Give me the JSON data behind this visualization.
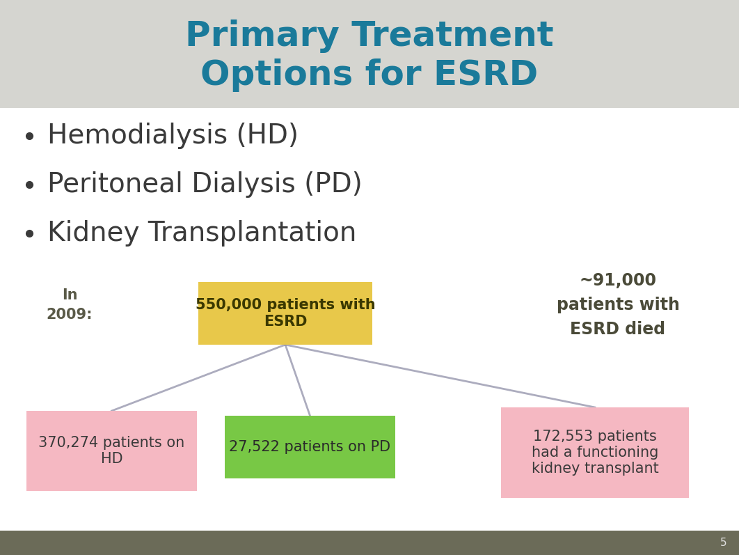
{
  "title_line1": "Primary Treatment",
  "title_line2": "Options for ESRD",
  "title_color": "#1a7a9a",
  "header_bg": "#d5d5d0",
  "slide_bg": "#f5f5f5",
  "content_bg": "#ffffff",
  "footer_bg": "#6b6b58",
  "bullet_items": [
    "Hemodialysis (HD)",
    "Peritoneal Dialysis (PD)",
    "Kidney Transplantation"
  ],
  "bullet_color": "#3a3a3a",
  "bullet_dot_color": "#3a3a3a",
  "in_2009_text": "In\n2009:",
  "in_2009_color": "#5a5a48",
  "top_box_text": "550,000 patients with\nESRD",
  "top_box_color": "#e8c84a",
  "top_box_text_color": "#3a3800",
  "bottom_left_text": "370,274 patients on\nHD",
  "bottom_left_color": "#f5b8c2",
  "bottom_left_text_color": "#3a3a3a",
  "bottom_mid_text": "27,522 patients on PD",
  "bottom_mid_color": "#78c845",
  "bottom_mid_text_color": "#2a2a2a",
  "bottom_right_text": "172,553 patients\nhad a functioning\nkidney transplant",
  "bottom_right_color": "#f5b8c2",
  "bottom_right_text_color": "#3a3a3a",
  "right_text": "~91,000\npatients with\nESRD died",
  "right_text_color": "#4a4a38",
  "line_color": "#9090a8",
  "page_number": "5"
}
